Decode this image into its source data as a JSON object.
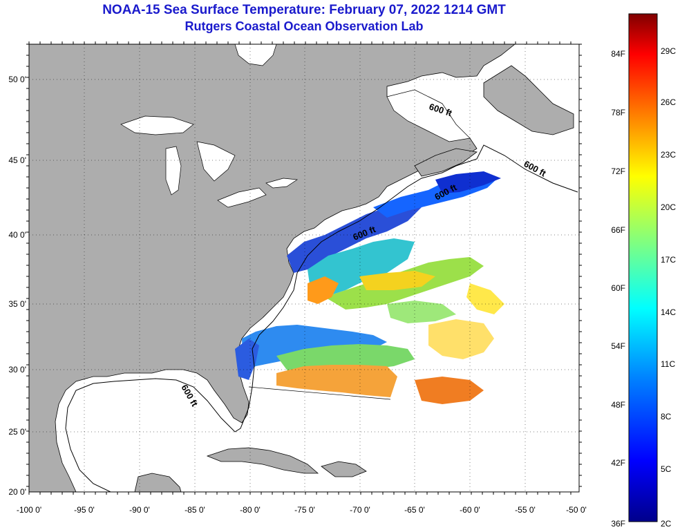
{
  "header": {
    "title": "NOAA-15 Sea Surface Temperature:  February 07, 2022 1214 GMT",
    "subtitle": "Rutgers Coastal Ocean Observation Lab"
  },
  "axes": {
    "lon_labels": [
      "-100 0'",
      "-95 0'",
      "-90 0'",
      "-85 0'",
      "-80 0'",
      "-75 0'",
      "-70 0'",
      "-65 0'",
      "-60 0'",
      "-55 0'",
      "-50 0'"
    ],
    "lat_labels": [
      "50 0'",
      "45 0'",
      "40 0'",
      "35 0'",
      "30 0'",
      "25 0'",
      "20 0'"
    ],
    "lon_range": [
      -100,
      -50
    ],
    "lat_range": [
      20,
      52.5
    ]
  },
  "contours": {
    "label": "600 ft"
  },
  "colorbar": {
    "fahrenheit": [
      "84F",
      "78F",
      "72F",
      "66F",
      "60F",
      "54F",
      "48F",
      "42F",
      "36F"
    ],
    "celsius": [
      "29C",
      "26C",
      "23C",
      "20C",
      "17C",
      "14C",
      "11C",
      "8C",
      "5C",
      "2C"
    ],
    "colors": [
      "#00008b",
      "#0000ff",
      "#0080ff",
      "#00ffff",
      "#80ff80",
      "#ffff00",
      "#ff8000",
      "#ff0000",
      "#800000"
    ]
  },
  "colors": {
    "land": "#adadad",
    "ocean": "#ffffff",
    "title": "#1a1acc"
  }
}
